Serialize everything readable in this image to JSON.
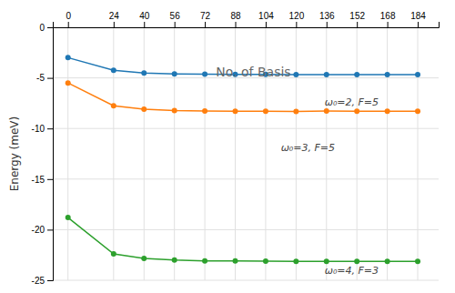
{
  "chart_data": {
    "type": "line",
    "xlabel": "No. of Basis",
    "ylabel": "Energy (meV)",
    "x": [
      0,
      24,
      40,
      56,
      72,
      88,
      104,
      120,
      136,
      152,
      168,
      184
    ],
    "series": [
      {
        "values": [
          -3.0,
          -4.25,
          -4.52,
          -4.6,
          -4.63,
          -4.65,
          -4.66,
          -4.67,
          -4.67,
          -4.67,
          -4.67,
          -4.67
        ]
      },
      {
        "values": [
          -5.5,
          -7.75,
          -8.1,
          -8.22,
          -8.27,
          -8.29,
          -8.3,
          -8.31,
          -8.28,
          -8.3,
          -8.3,
          -8.3
        ]
      },
      {
        "values": [
          -18.8,
          -22.4,
          -22.85,
          -23.0,
          -23.08,
          -23.1,
          -23.12,
          -23.13,
          -23.13,
          -23.13,
          -23.13,
          -23.13
        ]
      }
    ],
    "annotations": [
      {
        "text": "ω₀=2, F=5",
        "x": 135,
        "y": -7.5
      },
      {
        "text": "ω₀=3, F=5",
        "x": 112,
        "y": -12.0
      },
      {
        "text": "ω₀=4, F=3",
        "x": 135,
        "y": -24.1
      }
    ],
    "xlim": [
      -8,
      195
    ],
    "xticks": [
      0,
      24,
      40,
      56,
      72,
      88,
      104,
      120,
      136,
      152,
      168,
      184
    ],
    "ylim": [
      -25,
      0
    ],
    "yticks": [
      0,
      -5,
      -10,
      -15,
      -20,
      -25
    ],
    "grid": true,
    "marker": "circle"
  }
}
